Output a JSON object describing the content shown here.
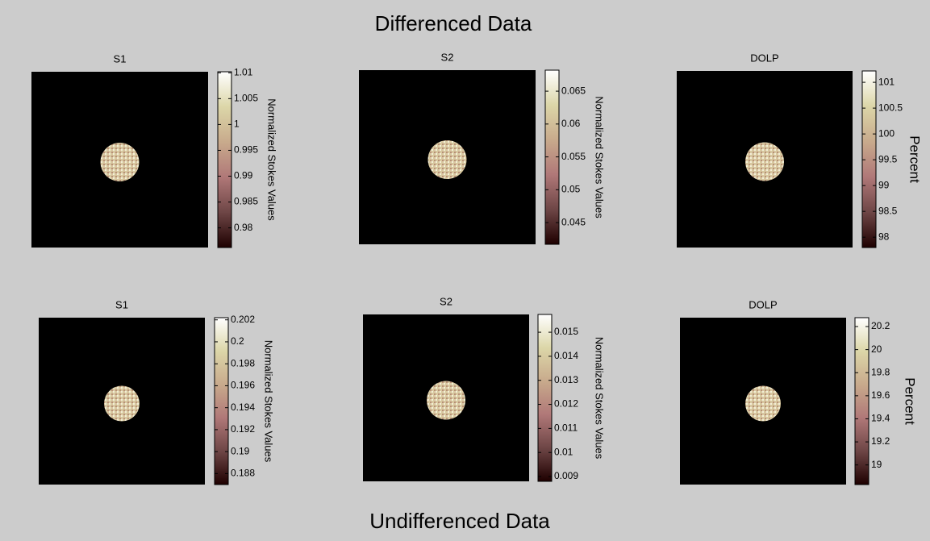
{
  "headings": [
    "Differenced Data",
    "Undifferenced Data"
  ],
  "chart_data": [
    {
      "type": "image",
      "title": "S1",
      "colorbar_label": "Normalized Stokes Values",
      "clim": [
        0.9762,
        1.0102
      ],
      "cticks": [
        0.98,
        0.985,
        0.99,
        0.995,
        1,
        1.005,
        1.01
      ]
    },
    {
      "type": "image",
      "title": "S2",
      "colorbar_label": "Normalized Stokes Values",
      "clim": [
        0.0417,
        0.0682
      ],
      "cticks": [
        0.045,
        0.05,
        0.055,
        0.06,
        0.065
      ]
    },
    {
      "type": "image",
      "title": "DOLP",
      "colorbar_label": "Percent",
      "clim": [
        97.8,
        101.22
      ],
      "cticks": [
        98,
        98.5,
        99,
        99.5,
        100,
        100.5,
        101
      ]
    },
    {
      "type": "image",
      "title": "S1",
      "colorbar_label": "Normalized Stokes Values",
      "clim": [
        0.187,
        0.2022
      ],
      "cticks": [
        0.188,
        0.19,
        0.192,
        0.194,
        0.196,
        0.198,
        0.2,
        0.202
      ]
    },
    {
      "type": "image",
      "title": "S2",
      "colorbar_label": "Normalized Stokes Values",
      "clim": [
        0.0088,
        0.01574
      ],
      "cticks": [
        0.009,
        0.01,
        0.011,
        0.012,
        0.013,
        0.014,
        0.015
      ]
    },
    {
      "type": "image",
      "title": "DOLP",
      "colorbar_label": "Percent",
      "clim": [
        18.83,
        20.277
      ],
      "cticks": [
        19,
        19.2,
        19.4,
        19.6,
        19.8,
        20,
        20.2
      ]
    }
  ]
}
